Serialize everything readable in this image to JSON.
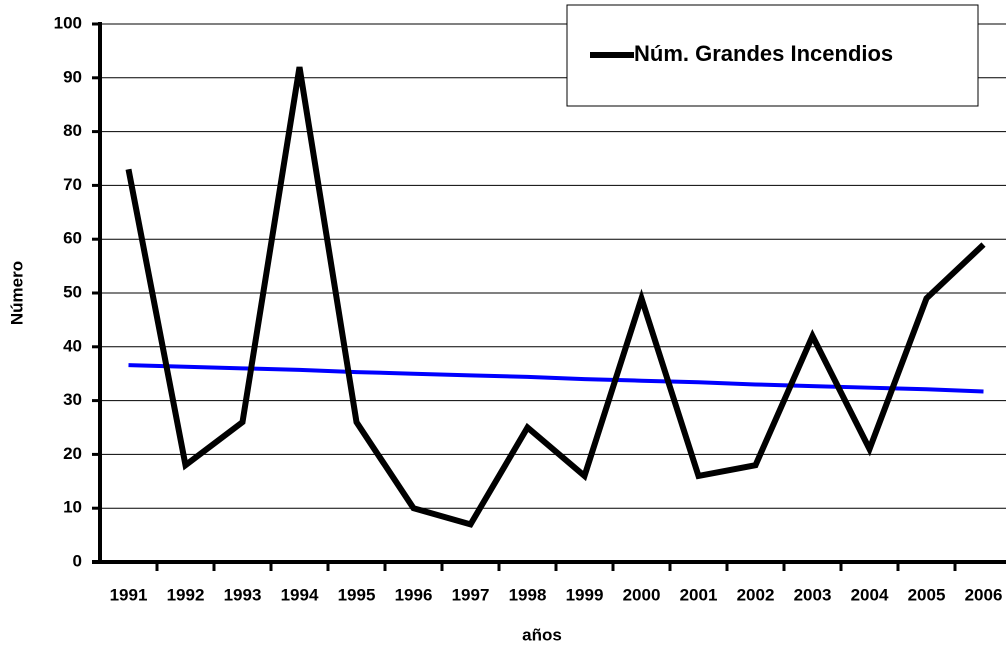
{
  "chart_data": {
    "type": "line",
    "x_label": "años",
    "y_label": "Número",
    "categories": [
      "1991",
      "1992",
      "1993",
      "1994",
      "1995",
      "1996",
      "1997",
      "1998",
      "1999",
      "2000",
      "2001",
      "2002",
      "2003",
      "2004",
      "2005",
      "2006"
    ],
    "series": [
      {
        "name": "Núm. Grandes Incendios",
        "color": "#000000",
        "values": [
          73,
          18,
          26,
          92,
          26,
          10,
          7,
          25,
          16,
          49,
          16,
          18,
          42,
          21,
          49,
          59
        ]
      },
      {
        "color": "#0000ff",
        "values": [
          36.6,
          36.3,
          36.0,
          35.7,
          35.3,
          35.0,
          34.7,
          34.4,
          34.0,
          33.7,
          33.4,
          33.0,
          32.7,
          32.4,
          32.1,
          31.7
        ]
      }
    ],
    "ylim": [
      0,
      100
    ],
    "yticks": [
      0,
      10,
      20,
      30,
      40,
      50,
      60,
      70,
      80,
      90,
      100
    ],
    "grid": true,
    "legend": "upper right"
  }
}
